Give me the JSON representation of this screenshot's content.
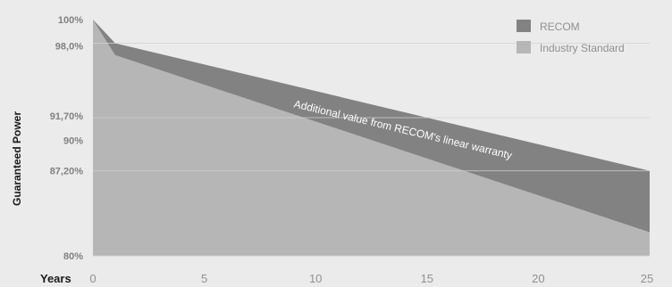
{
  "chart_data": {
    "type": "area",
    "ylabel": "Guaranteed Power",
    "xlabel": "Years",
    "xlim": [
      0,
      25
    ],
    "ylim": [
      80,
      100
    ],
    "x_ticks": [
      "0",
      "5",
      "10",
      "15",
      "20",
      "25"
    ],
    "y_ticks": [
      {
        "value": 100,
        "label": "100%"
      },
      {
        "value": 98.0,
        "label": "98,0%"
      },
      {
        "value": 91.7,
        "label": "91,70%"
      },
      {
        "value": 90,
        "label": "90%"
      },
      {
        "value": 87.2,
        "label": "87,20%"
      },
      {
        "value": 80,
        "label": "80%"
      }
    ],
    "gridlines_at": [
      98.0,
      91.7,
      87.2
    ],
    "series": [
      {
        "name": "RECOM",
        "color": "#828282",
        "points": [
          [
            0,
            100
          ],
          [
            1,
            98.0
          ],
          [
            25,
            87.2
          ]
        ]
      },
      {
        "name": "Industry Standard",
        "color": "#b6b6b6",
        "points": [
          [
            0,
            100
          ],
          [
            1,
            97.0
          ],
          [
            25,
            82.0
          ]
        ]
      }
    ],
    "annotation": "Additional value from RECOM's linear warranty",
    "legend_position": "top-right"
  }
}
